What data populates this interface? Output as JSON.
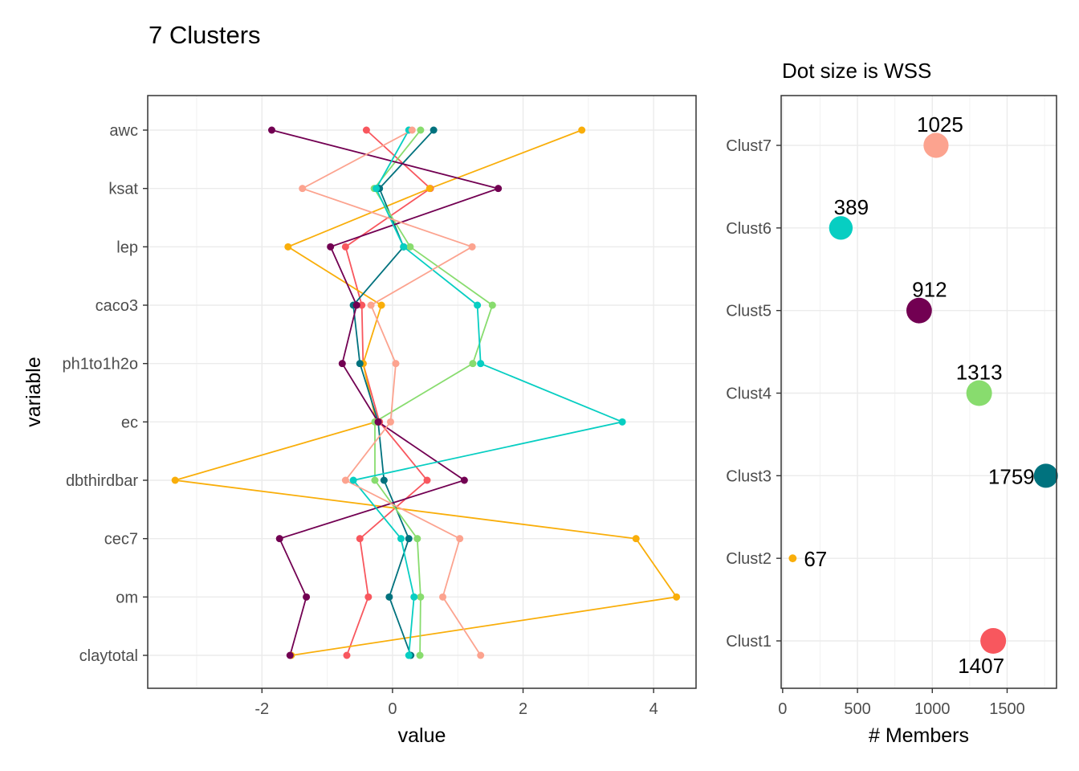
{
  "title": "7 Clusters",
  "subtitle": "Dot size is WSS",
  "colors": {
    "Clust1": "#F8575E",
    "Clust2": "#F9AE0A",
    "Clust3": "#00727E",
    "Clust4": "#88DC6E",
    "Clust5": "#720052",
    "Clust6": "#07CEC2",
    "Clust7": "#FCA38F"
  },
  "chart_data": [
    {
      "type": "line",
      "orientation": "horizontal-profile",
      "xlabel": "value",
      "ylabel": "variable",
      "xlim": [
        -3.75,
        4.65
      ],
      "x_ticks": [
        -2,
        0,
        2,
        4
      ],
      "grid": true,
      "legend": "none",
      "categories": [
        "awc",
        "ksat",
        "lep",
        "caco3",
        "ph1to1h2o",
        "ec",
        "dbthirdbar",
        "cec7",
        "om",
        "claytotal"
      ],
      "series": [
        {
          "name": "Clust1",
          "values": [
            -0.4,
            0.58,
            -0.72,
            -0.47,
            -0.45,
            -0.2,
            0.53,
            -0.5,
            -0.37,
            -0.7
          ]
        },
        {
          "name": "Clust2",
          "values": [
            2.9,
            0.57,
            -1.6,
            -0.17,
            -0.45,
            -0.25,
            -3.33,
            3.73,
            4.35,
            -1.55
          ]
        },
        {
          "name": "Clust3",
          "values": [
            0.63,
            -0.2,
            0.17,
            -0.6,
            -0.5,
            -0.22,
            -0.13,
            0.25,
            -0.05,
            0.28
          ]
        },
        {
          "name": "Clust4",
          "values": [
            0.43,
            -0.28,
            0.27,
            1.53,
            1.23,
            -0.27,
            -0.27,
            0.38,
            0.43,
            0.42
          ]
        },
        {
          "name": "Clust5",
          "values": [
            -1.85,
            1.62,
            -0.95,
            -0.55,
            -0.77,
            -0.22,
            1.1,
            -1.73,
            -1.32,
            -1.57
          ]
        },
        {
          "name": "Clust6",
          "values": [
            0.25,
            -0.25,
            0.17,
            1.3,
            1.35,
            3.52,
            -0.6,
            0.13,
            0.33,
            0.25
          ]
        },
        {
          "name": "Clust7",
          "values": [
            0.3,
            -1.38,
            1.22,
            -0.33,
            0.05,
            -0.03,
            -0.72,
            1.03,
            0.77,
            1.35
          ]
        }
      ]
    },
    {
      "type": "scatter",
      "xlabel": "# Members",
      "ylabel": "",
      "xlim": [
        -10,
        1830
      ],
      "x_ticks": [
        0,
        500,
        1000,
        1500
      ],
      "grid": true,
      "size_encodes": "WSS",
      "categories": [
        "Clust1",
        "Clust2",
        "Clust3",
        "Clust4",
        "Clust5",
        "Clust6",
        "Clust7"
      ],
      "points": [
        {
          "cluster": "Clust1",
          "members": 1407,
          "label": "1407",
          "wss_relative": 1.0
        },
        {
          "cluster": "Clust2",
          "members": 67,
          "label": "67",
          "wss_relative": 0.12
        },
        {
          "cluster": "Clust3",
          "members": 1759,
          "label": "1759",
          "wss_relative": 0.87
        },
        {
          "cluster": "Clust4",
          "members": 1313,
          "label": "1313",
          "wss_relative": 1.0
        },
        {
          "cluster": "Clust5",
          "members": 912,
          "label": "912",
          "wss_relative": 0.98
        },
        {
          "cluster": "Clust6",
          "members": 389,
          "label": "389",
          "wss_relative": 0.83
        },
        {
          "cluster": "Clust7",
          "members": 1025,
          "label": "1025",
          "wss_relative": 0.94
        }
      ]
    }
  ]
}
